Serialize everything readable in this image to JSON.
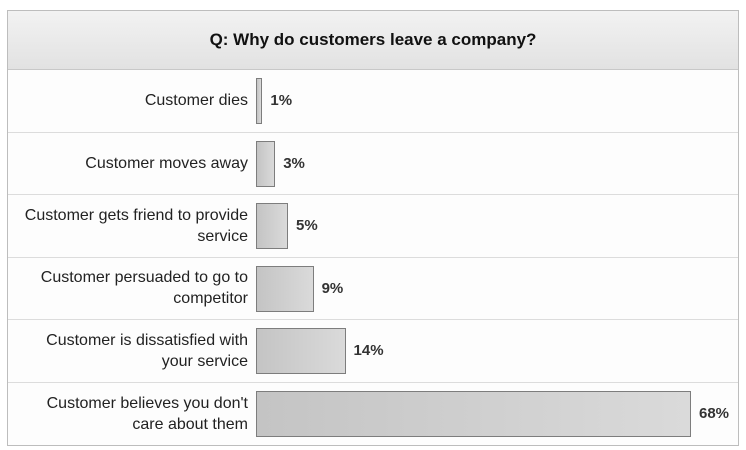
{
  "chart_data": {
    "type": "bar",
    "orientation": "horizontal",
    "title": "Q: Why do customers leave a company?",
    "categories": [
      "Customer dies",
      "Customer moves away",
      "Customer gets friend to provide service",
      "Customer persuaded to go to competitor",
      "Customer is dissatisfied with your service",
      "Customer believes you don't care about them"
    ],
    "values": [
      1,
      3,
      5,
      9,
      14,
      68
    ],
    "value_labels": [
      "1%",
      "3%",
      "5%",
      "9%",
      "14%",
      "68%"
    ],
    "color": "#c4c4c4"
  }
}
